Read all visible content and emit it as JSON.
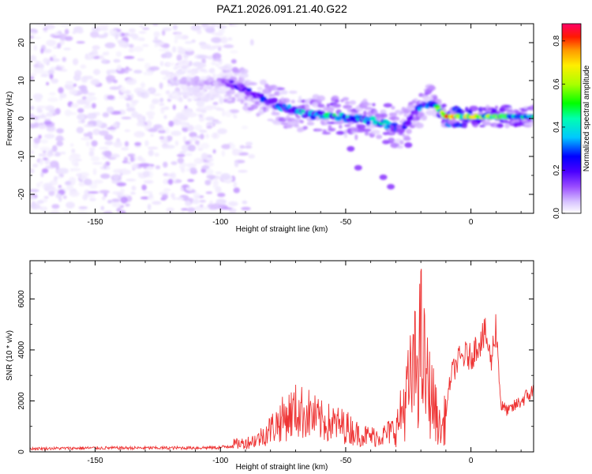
{
  "chart_data": [
    {
      "type": "heatmap",
      "title": "PAZ1.2026.091.21.40.G22",
      "xlabel": "Height of straight line (km)",
      "ylabel": "Frequency (Hz)",
      "xlim": [
        -176,
        25
      ],
      "ylim": [
        -25,
        25
      ],
      "xticks": [
        -150,
        -100,
        -50,
        0
      ],
      "xtick_labels": [
        "-150",
        "-100",
        "-50",
        "0"
      ],
      "yticks": [
        -20,
        -10,
        0,
        10,
        20
      ],
      "ytick_labels": [
        "-20",
        "-10",
        "0",
        "10",
        "20"
      ],
      "colorbar": {
        "label": "Normalized spectral amplitude",
        "range": [
          0,
          0.88
        ],
        "ticks": [
          0.0,
          0.2,
          0.4,
          0.6,
          0.8
        ],
        "tick_labels": [
          "0.0",
          "0.2",
          "0.4",
          "0.6",
          "0.8"
        ],
        "colors": [
          "#ffffff",
          "#e6d9ff",
          "#c79dff",
          "#9a4dff",
          "#6a00ff",
          "#0000ff",
          "#00b4ff",
          "#00ffa0",
          "#00ff00",
          "#c8ff00",
          "#ffff00",
          "#ff9900",
          "#ff0000",
          "#ff0066"
        ]
      },
      "features": [
        {
          "description": "noise field",
          "x": [
            -176,
            -90
          ],
          "y": [
            -25,
            25
          ],
          "amplitude": 0.05
        },
        {
          "description": "signal ridge",
          "x": [
            -120,
            -100,
            -95,
            -85,
            -75,
            -65,
            -55,
            -45,
            -35,
            -28,
            -22,
            -15,
            -10,
            0,
            10,
            25
          ],
          "y": [
            10,
            9.5,
            9,
            6,
            3,
            1,
            0.5,
            0,
            -1,
            -3,
            2,
            4,
            0.5,
            0.5,
            0.5,
            0.5
          ],
          "amplitude": [
            0.1,
            0.15,
            0.3,
            0.35,
            0.4,
            0.45,
            0.5,
            0.45,
            0.5,
            0.3,
            0.4,
            0.4,
            0.85,
            0.7,
            0.6,
            0.5
          ]
        }
      ]
    },
    {
      "type": "line",
      "xlabel": "Height of straight line (km)",
      "ylabel": "SNR (10 * v/v)",
      "xlim": [
        -176,
        25
      ],
      "ylim": [
        0,
        7500
      ],
      "xticks": [
        -150,
        -100,
        -50,
        0
      ],
      "xtick_labels": [
        "-150",
        "-100",
        "-50",
        "0"
      ],
      "yticks": [
        0,
        2000,
        4000,
        6000
      ],
      "ytick_labels": [
        "0",
        "2000",
        "4000",
        "6000"
      ],
      "color": "#ee3333",
      "series": [
        {
          "name": "SNR",
          "x": [
            -176,
            -150,
            -120,
            -100,
            -95,
            -90,
            -85,
            -80,
            -75,
            -70,
            -65,
            -60,
            -55,
            -50,
            -45,
            -40,
            -35,
            -30,
            -28,
            -25,
            -22,
            -20,
            -18,
            -15,
            -12,
            -10,
            -8,
            -5,
            -2,
            0,
            3,
            6,
            8,
            10,
            12,
            15,
            20,
            25
          ],
          "y": [
            150,
            180,
            180,
            200,
            300,
            350,
            500,
            900,
            1300,
            1600,
            1500,
            1200,
            1100,
            1000,
            700,
            600,
            650,
            900,
            1500,
            2500,
            3500,
            4500,
            3000,
            2000,
            800,
            1500,
            3000,
            3600,
            3800,
            3700,
            4300,
            4600,
            3500,
            5000,
            1800,
            1600,
            2000,
            2400
          ]
        }
      ]
    }
  ]
}
